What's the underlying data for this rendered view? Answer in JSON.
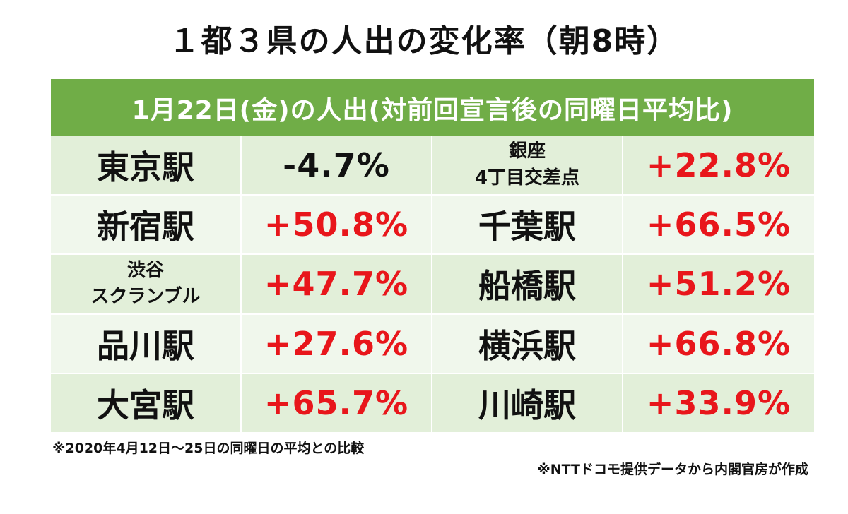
{
  "title": "１都３県の人出の変化率（朝8時）",
  "header": "1月22日(金)の人出(対前回宣言後の同曜日平均比)",
  "colors": {
    "header_bg": "#70ad47",
    "row_dark": "#e2efd9",
    "row_light": "#f0f7ec",
    "positive": "#e8161b",
    "negative": "#111111"
  },
  "rows": [
    {
      "left": {
        "station_line1": "東京駅",
        "station_line2": "",
        "value": "-4.7%"
      },
      "right": {
        "station_line1": "銀座",
        "station_line2": "4丁目交差点",
        "value": "+22.8%"
      }
    },
    {
      "left": {
        "station_line1": "新宿駅",
        "station_line2": "",
        "value": "+50.8%"
      },
      "right": {
        "station_line1": "千葉駅",
        "station_line2": "",
        "value": "+66.5%"
      }
    },
    {
      "left": {
        "station_line1": "渋谷",
        "station_line2": "スクランブル",
        "value": "+47.7%"
      },
      "right": {
        "station_line1": "船橋駅",
        "station_line2": "",
        "value": "+51.2%"
      }
    },
    {
      "left": {
        "station_line1": "品川駅",
        "station_line2": "",
        "value": "+27.6%"
      },
      "right": {
        "station_line1": "横浜駅",
        "station_line2": "",
        "value": "+66.8%"
      }
    },
    {
      "left": {
        "station_line1": "大宮駅",
        "station_line2": "",
        "value": "+65.7%"
      },
      "right": {
        "station_line1": "川崎駅",
        "station_line2": "",
        "value": "+33.9%"
      }
    }
  ],
  "footnote": "※2020年4月12日～25日の同曜日の平均との比較",
  "source": "※NTTドコモ提供データから内閣官房が作成"
}
